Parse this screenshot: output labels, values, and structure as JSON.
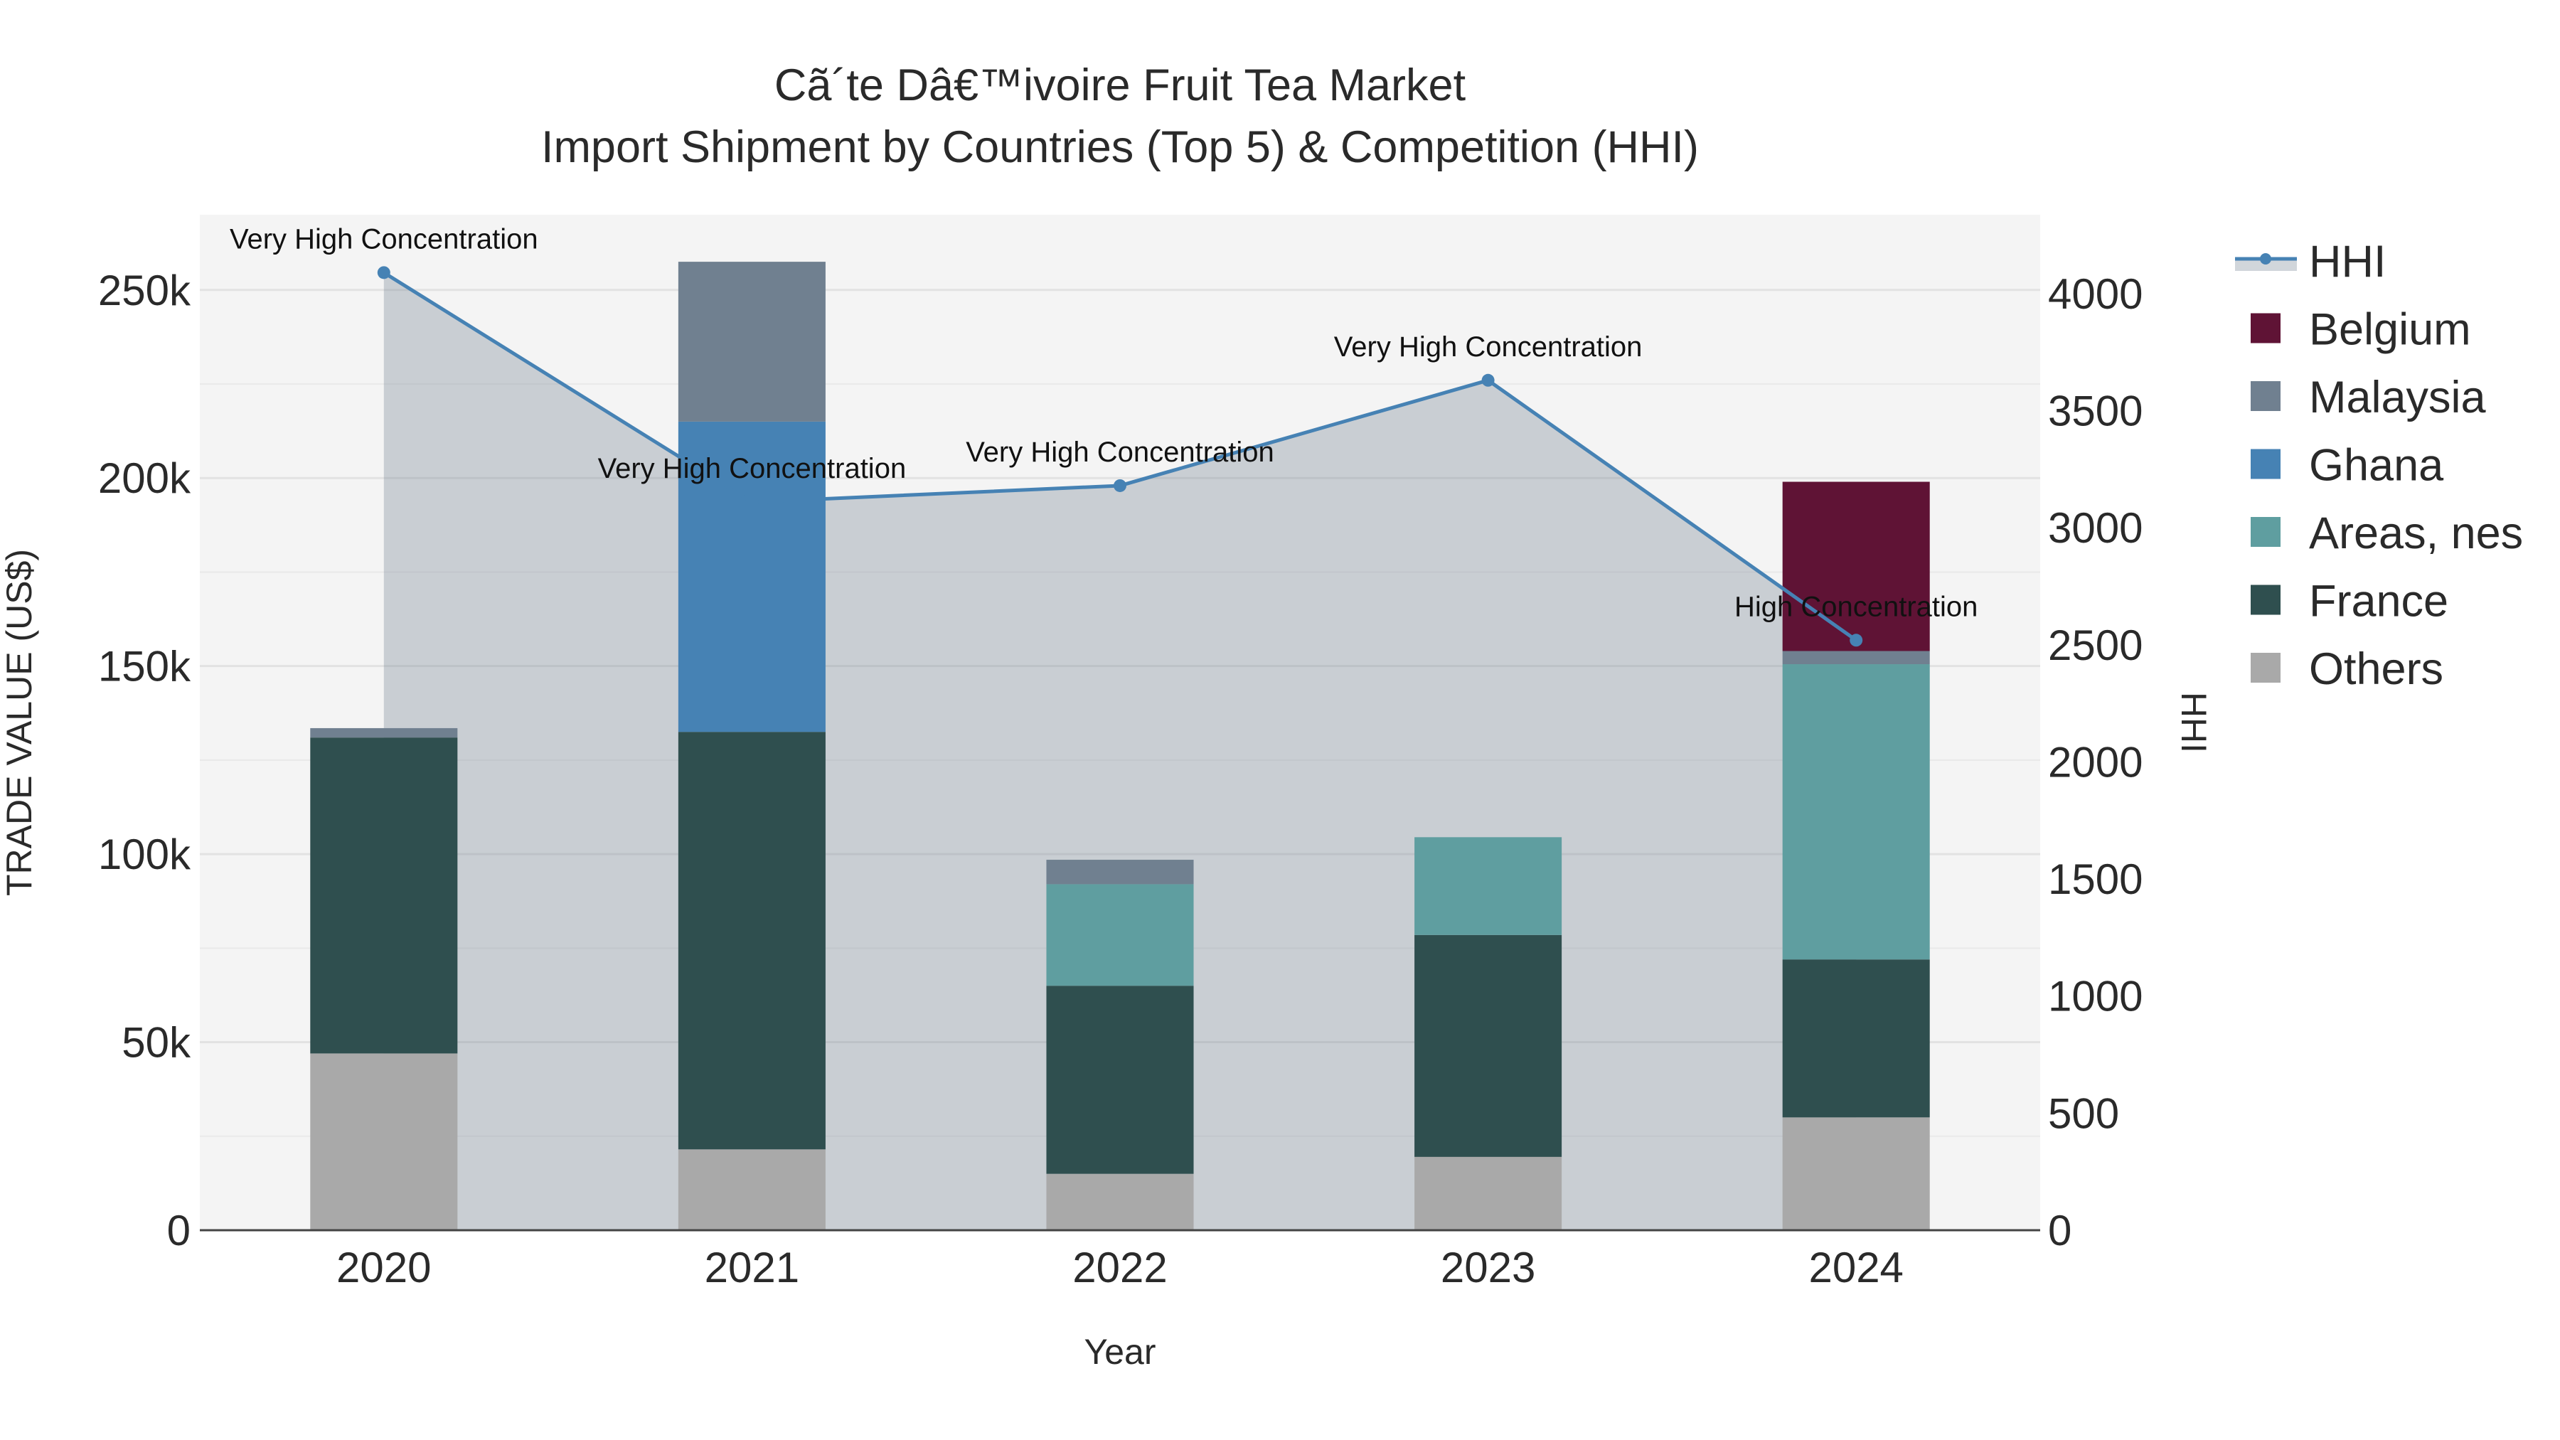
{
  "chart_data": {
    "type": "bar",
    "stacked": true,
    "title": "Cã´te Dâ€™ivoire Fruit Tea Market",
    "subtitle": "Import Shipment by Countries (Top 5) & Competition (HHI)",
    "xlabel": "Year",
    "ylabel": "TRADE VALUE (US$)",
    "y2label": "HHI",
    "categories": [
      "2020",
      "2021",
      "2022",
      "2023",
      "2024"
    ],
    "ylim": [
      0,
      270000
    ],
    "y2lim": [
      0,
      4337
    ],
    "yticks": [
      0,
      50000,
      100000,
      150000,
      200000,
      250000
    ],
    "ytick_labels": [
      "0",
      "50k",
      "100k",
      "150k",
      "200k",
      "250k"
    ],
    "y2ticks": [
      0,
      500,
      1000,
      1500,
      2000,
      2500,
      3000,
      3500,
      4000
    ],
    "y2tick_labels": [
      "0",
      "500",
      "1000",
      "1500",
      "2000",
      "2500",
      "3000",
      "3500",
      "4000"
    ],
    "series": [
      {
        "name": "Others",
        "color": "#a9a9a9",
        "values": [
          47000,
          21500,
          15000,
          19500,
          30000
        ]
      },
      {
        "name": "France",
        "color": "#2f4f4f",
        "values": [
          84000,
          111000,
          50000,
          59000,
          42000
        ]
      },
      {
        "name": "Areas, nes",
        "color": "#5f9ea0",
        "values": [
          0,
          0,
          27000,
          26000,
          78500
        ]
      },
      {
        "name": "Ghana",
        "color": "#4682b4",
        "values": [
          0,
          82500,
          0,
          0,
          0
        ]
      },
      {
        "name": "Malaysia",
        "color": "#708090",
        "values": [
          2500,
          42500,
          6500,
          0,
          3500
        ]
      },
      {
        "name": "Belgium",
        "color": "#5f1335",
        "values": [
          0,
          0,
          0,
          0,
          45000
        ]
      }
    ],
    "hhi": {
      "name": "HHI",
      "color": "#4682b4",
      "values": [
        4090,
        3110,
        3180,
        3630,
        2520
      ],
      "labels": [
        "Very High Concentration",
        "Very High Concentration",
        "Very High Concentration",
        "Very High Concentration",
        "High Concentration"
      ]
    },
    "legend_order": [
      "HHI",
      "Belgium",
      "Malaysia",
      "Ghana",
      "Areas, nes",
      "France",
      "Others"
    ],
    "legend_position": "right"
  }
}
